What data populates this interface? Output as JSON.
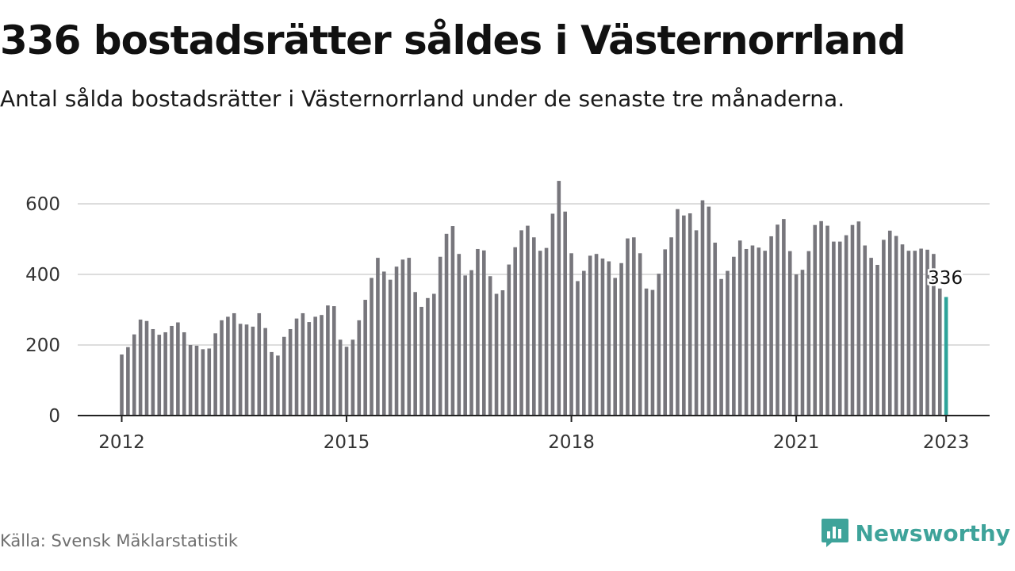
{
  "header": {
    "title": "336 bostadsrätter såldes i Västernorrland",
    "subtitle": "Antal sålda bostadsrätter i Västernorrland under de senaste tre månaderna."
  },
  "footer": {
    "source": "Källa: Svensk Mäklarstatistik",
    "brand": "Newsworthy",
    "brand_icon": "newsworthy-logo-icon"
  },
  "colors": {
    "bar": "#77767c",
    "highlight": "#2ea39a",
    "grid": "#dddddd",
    "axis": "#222222",
    "brand": "#3ea39a"
  },
  "chart_data": {
    "type": "bar",
    "title": "336 bostadsrätter såldes i Västernorrland",
    "subtitle": "Antal sålda bostadsrätter i Västernorrland under de senaste tre månaderna.",
    "xlabel": "",
    "ylabel": "",
    "ylim": [
      0,
      700
    ],
    "yticks": [
      0,
      200,
      400,
      600
    ],
    "xticks": [
      "2012",
      "2015",
      "2018",
      "2021",
      "2023"
    ],
    "grid": true,
    "legend": "none",
    "start": "2012-01",
    "end": "2023-01",
    "frequency": "monthly",
    "highlight_label": "336",
    "values": [
      173,
      194,
      230,
      272,
      268,
      245,
      229,
      236,
      254,
      264,
      236,
      200,
      198,
      188,
      190,
      233,
      270,
      280,
      290,
      260,
      258,
      252,
      290,
      248,
      180,
      170,
      223,
      245,
      275,
      290,
      265,
      280,
      285,
      312,
      310,
      215,
      195,
      215,
      270,
      328,
      390,
      447,
      408,
      385,
      422,
      442,
      447,
      350,
      308,
      333,
      345,
      450,
      515,
      537,
      458,
      397,
      412,
      472,
      468,
      395,
      345,
      355,
      428,
      477,
      525,
      538,
      505,
      467,
      475,
      572,
      665,
      578,
      460,
      381,
      410,
      453,
      458,
      445,
      437,
      390,
      432,
      502,
      505,
      460,
      360,
      356,
      402,
      471,
      505,
      585,
      567,
      573,
      525,
      610,
      592,
      490,
      387,
      410,
      450,
      496,
      472,
      482,
      476,
      467,
      508,
      541,
      557,
      466,
      400,
      413,
      466,
      540,
      551,
      538,
      493,
      493,
      511,
      540,
      550,
      482,
      447,
      427,
      498,
      524,
      509,
      485,
      467,
      467,
      473,
      470,
      458,
      360,
      336
    ]
  }
}
